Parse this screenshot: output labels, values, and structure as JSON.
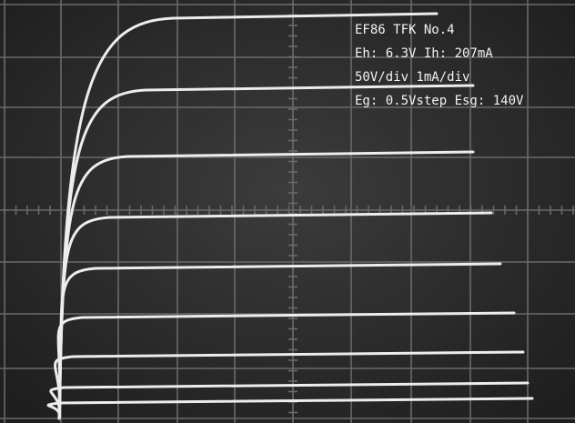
{
  "screen": {
    "annotations": [
      "EF86 TFK No.4",
      "Eh: 6.3V Ih: 207mA",
      "50V/div 1mA/div",
      "Eg: 0.5Vstep Esg: 140V"
    ]
  }
}
